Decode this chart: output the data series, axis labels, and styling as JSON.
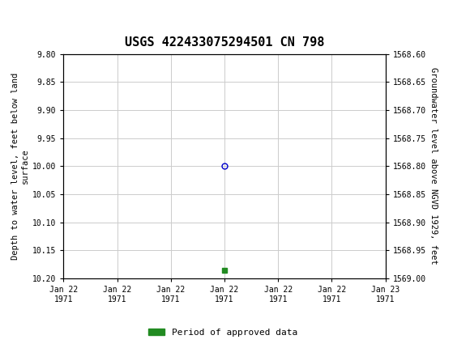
{
  "title": "USGS 422433075294501 CN 798",
  "header_color": "#1a7040",
  "ylabel_left": "Depth to water level, feet below land\nsurface",
  "ylabel_right": "Groundwater level above NGVD 1929, feet",
  "ylim_left": [
    9.8,
    10.2
  ],
  "ylim_right_top": 1569.0,
  "ylim_right_bottom": 1568.6,
  "xlim": [
    0,
    6
  ],
  "xtick_labels": [
    "Jan 22\n1971",
    "Jan 22\n1971",
    "Jan 22\n1971",
    "Jan 22\n1971",
    "Jan 22\n1971",
    "Jan 22\n1971",
    "Jan 23\n1971"
  ],
  "xtick_positions": [
    0,
    1,
    2,
    3,
    4,
    5,
    6
  ],
  "ytick_left": [
    9.8,
    9.85,
    9.9,
    9.95,
    10.0,
    10.05,
    10.1,
    10.15,
    10.2
  ],
  "ytick_right": [
    1569.0,
    1568.95,
    1568.9,
    1568.85,
    1568.8,
    1568.75,
    1568.7,
    1568.65,
    1568.6
  ],
  "ytick_right_labels": [
    "1569.00",
    "1568.95",
    "1568.90",
    "1568.85",
    "1568.80",
    "1568.75",
    "1568.70",
    "1568.65",
    "1568.60"
  ],
  "point_x": 3,
  "point_y": 10.0,
  "point_color": "#0000cc",
  "point_marker": "o",
  "point_size": 5,
  "green_point_x": 3,
  "green_point_y": 10.185,
  "green_point_color": "#228B22",
  "green_point_marker": "s",
  "green_point_size": 4,
  "legend_label": "Period of approved data",
  "legend_color": "#228B22",
  "grid_color": "#cccccc",
  "bg_color": "#ffffff",
  "font_family": "monospace",
  "title_fontsize": 11,
  "axis_label_fontsize": 7.5,
  "tick_fontsize": 7,
  "legend_fontsize": 8
}
